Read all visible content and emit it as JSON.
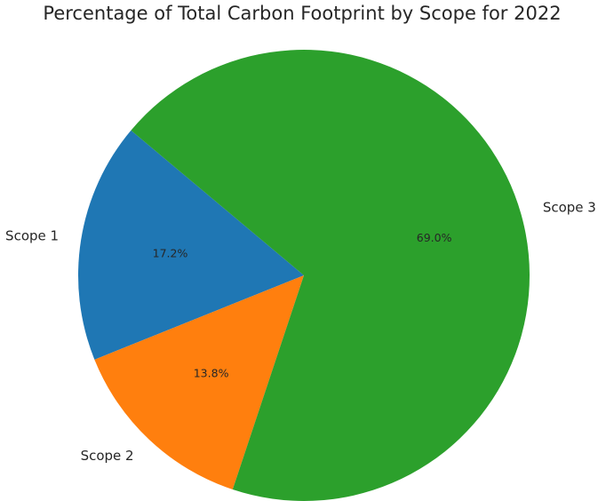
{
  "chart_data": {
    "type": "pie",
    "title": "Percentage of Total Carbon Footprint by Scope for 2022",
    "start_angle_deg": 140,
    "direction": "counterclockwise",
    "legend": "none",
    "slices": [
      {
        "label": "Scope 1",
        "value": 17.2,
        "percent_label": "17.2%",
        "color": "#1f77b4"
      },
      {
        "label": "Scope 2",
        "value": 13.8,
        "percent_label": "13.8%",
        "color": "#ff7f0e"
      },
      {
        "label": "Scope 3",
        "value": 69.0,
        "percent_label": "69.0%",
        "color": "#2ca02c"
      }
    ]
  }
}
